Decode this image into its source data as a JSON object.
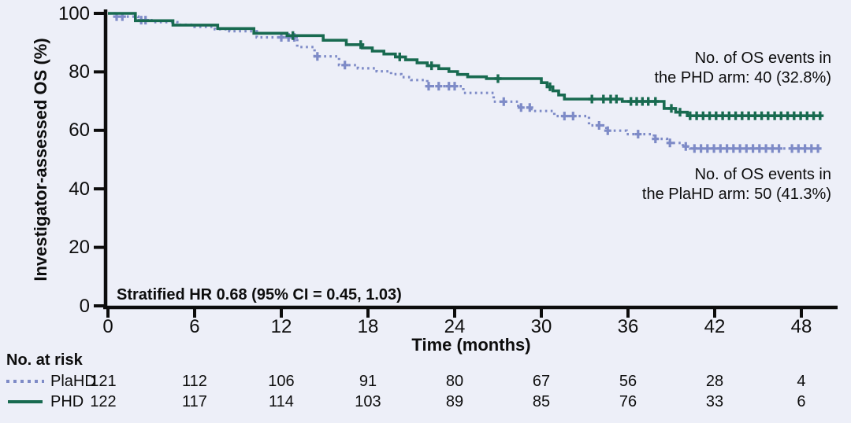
{
  "accent_colors": {
    "phd_green": "#186a50",
    "plahd_blue": "#7e8bc7",
    "axis_black": "#0d0d0d",
    "background": "#edeff8"
  },
  "axes": {
    "y_title": "Investigator-assessed OS (%)",
    "x_title": "Time (months)",
    "yticks": [
      100,
      80,
      60,
      40,
      20,
      0
    ],
    "xticks": [
      0,
      6,
      12,
      18,
      24,
      30,
      36,
      42,
      48
    ]
  },
  "notes": {
    "phd_events_line1": "No. of OS events in",
    "phd_events_line2": "the PHD arm: 40 (32.8%)",
    "plahd_events_line1": "No. of OS events in",
    "plahd_events_line2": "the PlaHD arm: 50 (41.3%)",
    "hr_text": "Stratified HR 0.68 (95% CI = 0.45, 1.03)"
  },
  "risk_table": {
    "title": "No. at risk",
    "rows": [
      {
        "label": "PlaHD",
        "style": "dotted",
        "color": "#7e8bc7",
        "values": [
          "121",
          "112",
          "106",
          "91",
          "80",
          "67",
          "56",
          "28",
          "4"
        ]
      },
      {
        "label": "PHD",
        "style": "solid",
        "color": "#186a50",
        "values": [
          "122",
          "117",
          "114",
          "103",
          "89",
          "85",
          "76",
          "33",
          "6"
        ]
      }
    ]
  },
  "chart_data": {
    "type": "line",
    "subtype": "kaplan-meier-step",
    "title": "",
    "xlabel": "Time (months)",
    "ylabel": "Investigator-assessed OS (%)",
    "xlim": [
      0,
      50.5
    ],
    "ylim": [
      0,
      100
    ],
    "grid": false,
    "legend_position": "risk-table-left",
    "series": [
      {
        "name": "PHD",
        "color": "#186a50",
        "line_style": "solid",
        "events_label": "No. of OS events in the PHD arm: 40 (32.8%)",
        "steps": [
          [
            0,
            100
          ],
          [
            1.9,
            97.5
          ],
          [
            4.5,
            96.0
          ],
          [
            7.6,
            94.8
          ],
          [
            10.1,
            93.2
          ],
          [
            12.4,
            92.4
          ],
          [
            14.9,
            90.8
          ],
          [
            16.5,
            89.3
          ],
          [
            17.6,
            88.2
          ],
          [
            18.3,
            87.1
          ],
          [
            19.1,
            86.1
          ],
          [
            19.9,
            85.1
          ],
          [
            20.6,
            84.1
          ],
          [
            21.4,
            83.1
          ],
          [
            22.1,
            82.1
          ],
          [
            22.9,
            81.1
          ],
          [
            23.6,
            80.1
          ],
          [
            24.2,
            79.1
          ],
          [
            24.9,
            78.3
          ],
          [
            26.2,
            77.7
          ],
          [
            30.0,
            76.3
          ],
          [
            30.4,
            74.9
          ],
          [
            30.8,
            73.5
          ],
          [
            31.2,
            72.1
          ],
          [
            31.6,
            70.7
          ],
          [
            35.6,
            69.9
          ],
          [
            38.5,
            67.5
          ],
          [
            39.3,
            66.2
          ],
          [
            40.1,
            65.0
          ]
        ],
        "end_time": 49.4,
        "censor_times": [
          12.8,
          17.5,
          20.2,
          22.4,
          27.0,
          30.6,
          33.5,
          34.3,
          34.8,
          35.2,
          36.2,
          36.6,
          37.0,
          37.4,
          37.9,
          39.0,
          39.6,
          40.3,
          40.75,
          41.2,
          41.65,
          42.1,
          42.55,
          43.0,
          43.45,
          43.9,
          44.35,
          44.8,
          45.25,
          45.7,
          46.15,
          46.6,
          47.05,
          47.5,
          47.95,
          48.4,
          48.85,
          49.3
        ]
      },
      {
        "name": "PlaHD",
        "color": "#7e8bc7",
        "line_style": "dotted",
        "events_label": "No. of OS events in the PlaHD arm: 50 (41.3%)",
        "steps": [
          [
            0,
            100
          ],
          [
            0.5,
            98.9
          ],
          [
            2.1,
            97.7
          ],
          [
            3.0,
            97.0
          ],
          [
            4.8,
            96.1
          ],
          [
            6.0,
            95.4
          ],
          [
            7.4,
            94.6
          ],
          [
            8.4,
            93.9
          ],
          [
            10.3,
            91.8
          ],
          [
            13.1,
            88.5
          ],
          [
            14.3,
            85.3
          ],
          [
            16.0,
            82.3
          ],
          [
            17.3,
            81.2
          ],
          [
            18.6,
            80.2
          ],
          [
            19.6,
            79.2
          ],
          [
            20.3,
            78.2
          ],
          [
            21.0,
            77.2
          ],
          [
            22.1,
            75.1
          ],
          [
            24.6,
            72.8
          ],
          [
            26.7,
            69.8
          ],
          [
            28.4,
            67.8
          ],
          [
            29.3,
            66.6
          ],
          [
            30.9,
            64.9
          ],
          [
            33.3,
            61.7
          ],
          [
            34.5,
            59.9
          ],
          [
            35.9,
            58.7
          ],
          [
            37.8,
            57.1
          ],
          [
            38.7,
            55.7
          ],
          [
            39.8,
            54.5
          ],
          [
            40.3,
            53.8
          ]
        ],
        "end_time": 49.4,
        "censor_times": [
          0.6,
          1.0,
          2.3,
          2.6,
          12.0,
          12.5,
          12.9,
          14.5,
          16.4,
          22.2,
          22.9,
          23.6,
          24.0,
          27.4,
          28.6,
          29.2,
          31.6,
          32.2,
          34.0,
          34.6,
          36.7,
          37.9,
          38.9,
          40.0,
          40.6,
          41.05,
          41.5,
          41.95,
          42.4,
          42.85,
          43.3,
          43.75,
          44.2,
          44.65,
          45.1,
          45.55,
          46.0,
          46.45,
          47.35,
          47.8,
          48.25,
          48.7,
          49.15
        ]
      }
    ],
    "risk_table": {
      "title": "No. at risk",
      "time_points": [
        0,
        6,
        12,
        18,
        24,
        30,
        36,
        42,
        48
      ],
      "rows": [
        {
          "name": "PlaHD",
          "at_risk": [
            121,
            112,
            106,
            91,
            80,
            67,
            56,
            28,
            4
          ]
        },
        {
          "name": "PHD",
          "at_risk": [
            122,
            117,
            114,
            103,
            89,
            85,
            76,
            33,
            6
          ]
        }
      ]
    },
    "annotations": [
      "No. of OS events in the PHD arm: 40 (32.8%)",
      "No. of OS events in the PlaHD arm: 50 (41.3%)",
      "Stratified HR 0.68 (95% CI = 0.45, 1.03)"
    ]
  }
}
